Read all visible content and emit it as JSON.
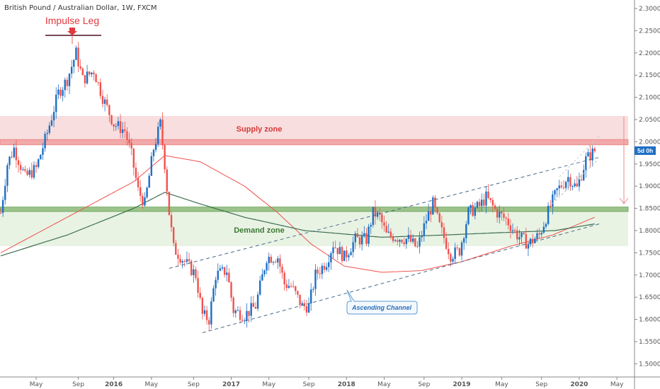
{
  "header": {
    "title": "British Pound / Australian Dollar, 1W, FXCM"
  },
  "colors": {
    "up": "#1e6fc4",
    "down": "#f0524e",
    "ma_fast": "#f0524e",
    "ma_slow": "#3d6e50",
    "supply": "#f8dede",
    "demand": "#e8f3e4",
    "channel": "#4a6a8a",
    "badge": "#1e6fc4"
  },
  "annotations": {
    "impulse": "Impulse Leg",
    "supply": "Supply zone",
    "demand": "Demand zone",
    "channel": "Ascending Channel",
    "countdown": "5d 0h"
  },
  "chart_data": {
    "type": "candlestick",
    "title": "British Pound / Australian Dollar, 1W, FXCM",
    "ylim": [
      1.48,
      2.32
    ],
    "y_ticks": [
      "2.30000",
      "2.25000",
      "2.20000",
      "2.15000",
      "2.10000",
      "2.05000",
      "2.00000",
      "1.95000",
      "1.90000",
      "1.85000",
      "1.80000",
      "1.75000",
      "1.70000",
      "1.65000",
      "1.60000",
      "1.55000",
      "1.50000"
    ],
    "x_ticks": [
      "May",
      "Sep",
      "2016",
      "May",
      "Sep",
      "2017",
      "May",
      "Sep",
      "2018",
      "May",
      "Sep",
      "2019",
      "May",
      "Sep",
      "2020",
      "May"
    ],
    "x_tick_weeks": [
      16,
      35,
      51,
      68,
      87,
      104,
      121,
      139,
      156,
      173,
      191,
      208,
      226,
      244,
      261,
      278
    ],
    "close_path": [
      [
        0,
        1.84
      ],
      [
        3,
        1.95
      ],
      [
        6,
        1.985
      ],
      [
        11,
        1.92
      ],
      [
        16,
        1.94
      ],
      [
        21,
        2.02
      ],
      [
        26,
        2.11
      ],
      [
        30,
        2.14
      ],
      [
        34,
        2.2
      ],
      [
        37,
        2.14
      ],
      [
        42,
        2.16
      ],
      [
        46,
        2.1
      ],
      [
        51,
        2.04
      ],
      [
        56,
        2.025
      ],
      [
        59,
        1.97
      ],
      [
        62,
        1.89
      ],
      [
        65,
        1.86
      ],
      [
        69,
        1.985
      ],
      [
        72,
        2.04
      ],
      [
        74,
        1.95
      ],
      [
        76,
        1.84
      ],
      [
        78,
        1.76
      ],
      [
        83,
        1.73
      ],
      [
        88,
        1.7
      ],
      [
        91,
        1.61
      ],
      [
        94,
        1.6
      ],
      [
        97,
        1.7
      ],
      [
        102,
        1.71
      ],
      [
        105,
        1.62
      ],
      [
        110,
        1.61
      ],
      [
        115,
        1.63
      ],
      [
        120,
        1.74
      ],
      [
        125,
        1.74
      ],
      [
        128,
        1.68
      ],
      [
        131,
        1.675
      ],
      [
        136,
        1.63
      ],
      [
        139,
        1.63
      ],
      [
        142,
        1.7
      ],
      [
        147,
        1.73
      ],
      [
        150,
        1.77
      ],
      [
        155,
        1.74
      ],
      [
        160,
        1.78
      ],
      [
        165,
        1.78
      ],
      [
        168,
        1.84
      ],
      [
        171,
        1.83
      ],
      [
        174,
        1.79
      ],
      [
        179,
        1.785
      ],
      [
        184,
        1.78
      ],
      [
        188,
        1.76
      ],
      [
        192,
        1.825
      ],
      [
        195,
        1.86
      ],
      [
        198,
        1.81
      ],
      [
        203,
        1.745
      ],
      [
        207,
        1.755
      ],
      [
        211,
        1.84
      ],
      [
        216,
        1.855
      ],
      [
        219,
        1.875
      ],
      [
        224,
        1.84
      ],
      [
        228,
        1.825
      ],
      [
        233,
        1.79
      ],
      [
        238,
        1.77
      ],
      [
        243,
        1.79
      ],
      [
        248,
        1.855
      ],
      [
        251,
        1.89
      ],
      [
        256,
        1.92
      ],
      [
        260,
        1.895
      ],
      [
        264,
        1.96
      ],
      [
        267,
        1.975
      ],
      [
        268,
        1.98
      ]
    ],
    "ma_fast": [
      [
        0,
        1.75
      ],
      [
        30,
        1.83
      ],
      [
        60,
        1.91
      ],
      [
        74,
        1.969
      ],
      [
        90,
        1.955
      ],
      [
        110,
        1.9
      ],
      [
        125,
        1.84
      ],
      [
        140,
        1.77
      ],
      [
        155,
        1.72
      ],
      [
        172,
        1.706
      ],
      [
        190,
        1.71
      ],
      [
        208,
        1.73
      ],
      [
        230,
        1.765
      ],
      [
        249,
        1.79
      ],
      [
        268,
        1.83
      ]
    ],
    "ma_slow": [
      [
        0,
        1.743
      ],
      [
        30,
        1.79
      ],
      [
        60,
        1.85
      ],
      [
        74,
        1.886
      ],
      [
        90,
        1.86
      ],
      [
        110,
        1.83
      ],
      [
        137,
        1.8
      ],
      [
        172,
        1.785
      ],
      [
        200,
        1.79
      ],
      [
        224,
        1.795
      ],
      [
        250,
        1.8
      ],
      [
        268,
        1.815
      ]
    ],
    "zones": {
      "supply": [
        2.0,
        2.058
      ],
      "supply_line": [
        1.993,
        2.005
      ],
      "demand": [
        1.765,
        1.85
      ],
      "demand_line": [
        1.843,
        1.853
      ]
    },
    "channel_upper": [
      [
        76,
        1.715
      ],
      [
        270,
        1.965
      ]
    ],
    "channel_lower": [
      [
        91,
        1.57
      ],
      [
        270,
        1.815
      ]
    ]
  }
}
